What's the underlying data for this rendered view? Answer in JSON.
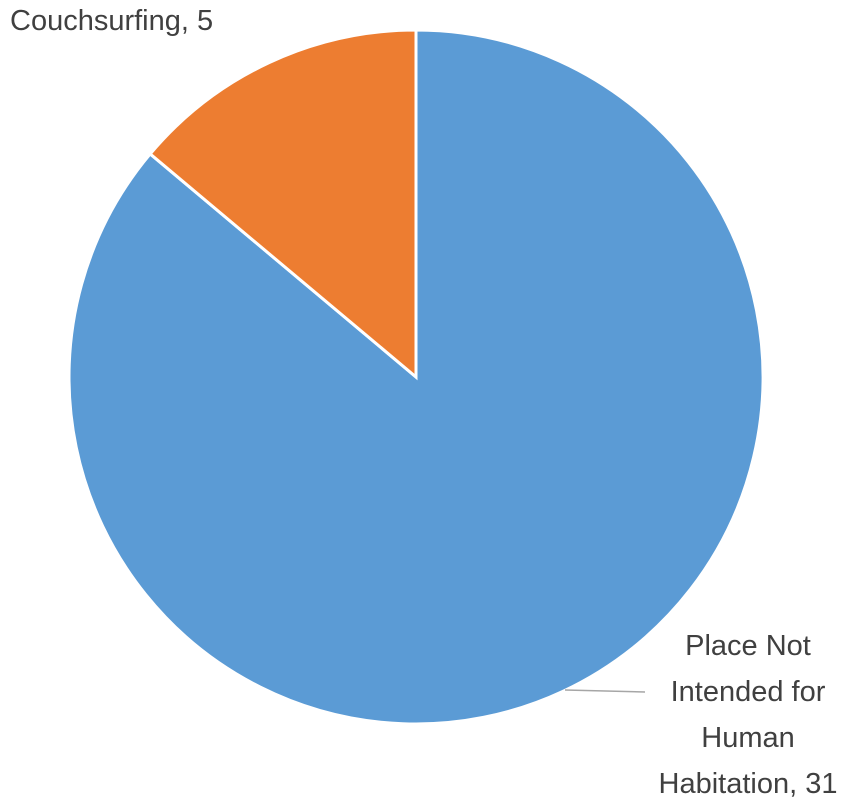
{
  "chart_data": {
    "type": "pie",
    "values": [
      31,
      5
    ],
    "value_labels": [
      "Place Not Intended for Human Habitation, 31",
      "Couchsurfing, 5"
    ],
    "colors": [
      "#5b9bd5",
      "#ed7d31"
    ]
  }
}
